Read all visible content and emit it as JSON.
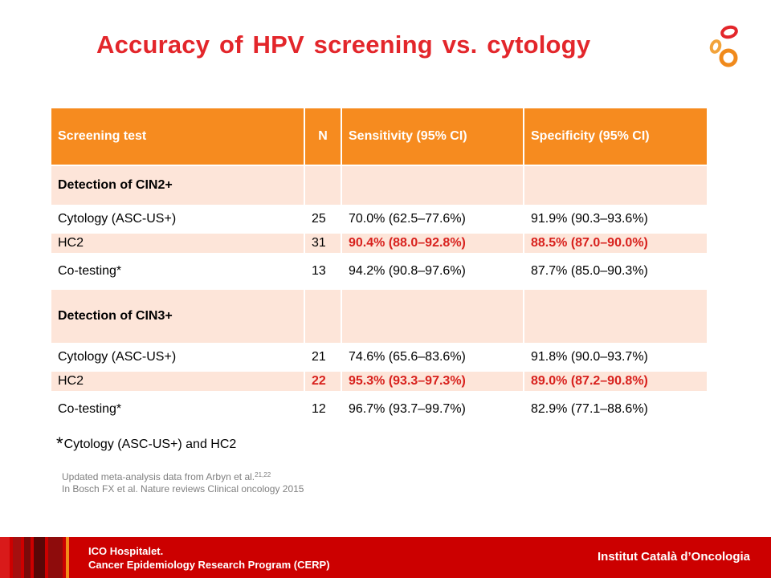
{
  "title": "Accuracy of HPV screening vs. cytology",
  "table": {
    "headers": [
      "Screening test",
      "N",
      "Sensitivity (95% CI)",
      "Specificity (95% CI)"
    ],
    "sections": [
      {
        "label": "Detection of CIN2+",
        "rows": [
          {
            "test": "Cytology (ASC-US+)",
            "n": "25",
            "sensitivity": "70.0% (62.5–77.6%)",
            "specificity": "91.9% (90.3–93.6%)"
          },
          {
            "test": "HC2",
            "n": "31",
            "sensitivity": "90.4% (88.0–92.8%)",
            "specificity": "88.5% (87.0–90.0%)"
          },
          {
            "test": "Co-testing*",
            "n": "13",
            "sensitivity": "94.2% (90.8–97.6%)",
            "specificity": "87.7% (85.0–90.3%)"
          }
        ]
      },
      {
        "label": "Detection of CIN3+",
        "rows": [
          {
            "test": "Cytology (ASC-US+)",
            "n": "21",
            "sensitivity": "74.6% (65.6–83.6%)",
            "specificity": "91.8% (90.0–93.7%)"
          },
          {
            "test": "HC2",
            "n": "22",
            "sensitivity": "95.3% (93.3–97.3%)",
            "specificity": "89.0% (87.2–90.8%)"
          },
          {
            "test": "Co-testing*",
            "n": "12",
            "sensitivity": "96.7% (93.7–99.7%)",
            "specificity": "82.9% (77.1–88.6%)"
          }
        ]
      }
    ]
  },
  "footnote": {
    "star": "*",
    "text": "Cytology (ASC-US+) and HC2"
  },
  "source": {
    "line1": "Updated meta-analysis data from Arbyn et al.",
    "line1_refs": "21,22",
    "line2": "In Bosch FX et al. Nature reviews Clinical oncology 2015"
  },
  "footer": {
    "left_line1": "ICO Hospitalet.",
    "left_line2": "Cancer Epidemiology Research Program (CERP)",
    "right": "Institut Català d’Oncologia"
  },
  "colors": {
    "title_red": "#e3262b",
    "header_orange": "#f68b1f",
    "row_tint": "#fde5d9",
    "highlight_red": "#d8211d",
    "footer_red": "#cc0000"
  },
  "logo_icon": "ico-rings-logo-icon"
}
